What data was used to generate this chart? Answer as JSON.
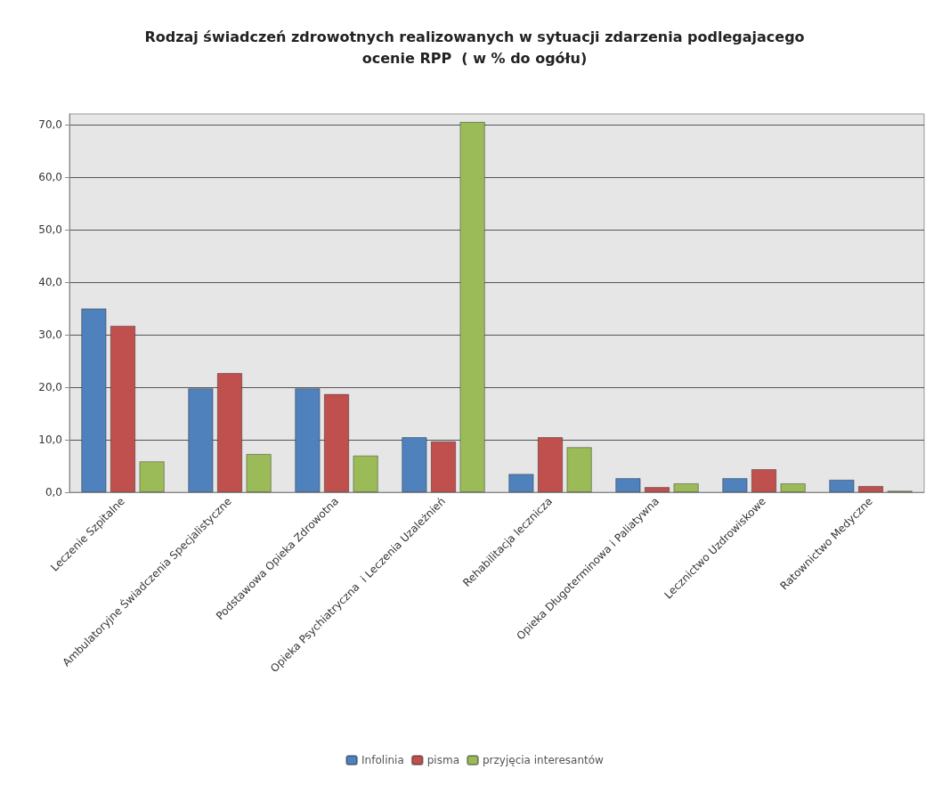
{
  "chart_data": {
    "type": "bar",
    "title": "Rodzaj świadczeń zdrowotnych realizowanych w sytuacji zdarzenia podlegajacego\nocenie RPP  ( w % do ogółu)",
    "categories": [
      "Leczenie Szpitalne",
      "Ambulatoryjne Świadczenia Specjalistyczne",
      "Podstawowa Opieka Zdrowotna",
      "Opieka Psychiatryczna  i Leczenia Uzależnień",
      "Rehabilitacja lecznicza",
      "Opieka Długoterminowa i Paliatywna",
      "Lecznictwo Uzdrowiskowe",
      "Ratownictwo Medyczne"
    ],
    "series": [
      {
        "name": "Infolinia",
        "color": "#4f81bd",
        "values": [
          35.0,
          19.8,
          19.8,
          10.5,
          3.5,
          2.7,
          2.7,
          2.4
        ]
      },
      {
        "name": "pisma",
        "color": "#c0504d",
        "values": [
          31.7,
          22.7,
          18.7,
          9.7,
          10.5,
          1.0,
          4.4,
          1.2
        ]
      },
      {
        "name": "przyjęcia interesantów",
        "color": "#9bbb59",
        "values": [
          5.9,
          7.3,
          7.0,
          70.5,
          8.6,
          1.7,
          1.7,
          0.3
        ]
      }
    ],
    "ylim": [
      0,
      72
    ],
    "yticks": [
      {
        "value": 0,
        "label": "0,0"
      },
      {
        "value": 10,
        "label": "10,0"
      },
      {
        "value": 20,
        "label": "20,0"
      },
      {
        "value": 30,
        "label": "30,0"
      },
      {
        "value": 40,
        "label": "40,0"
      },
      {
        "value": 50,
        "label": "50,0"
      },
      {
        "value": 60,
        "label": "60,0"
      },
      {
        "value": 70,
        "label": "70,0"
      }
    ],
    "grid": "y",
    "legend": "bottom"
  }
}
